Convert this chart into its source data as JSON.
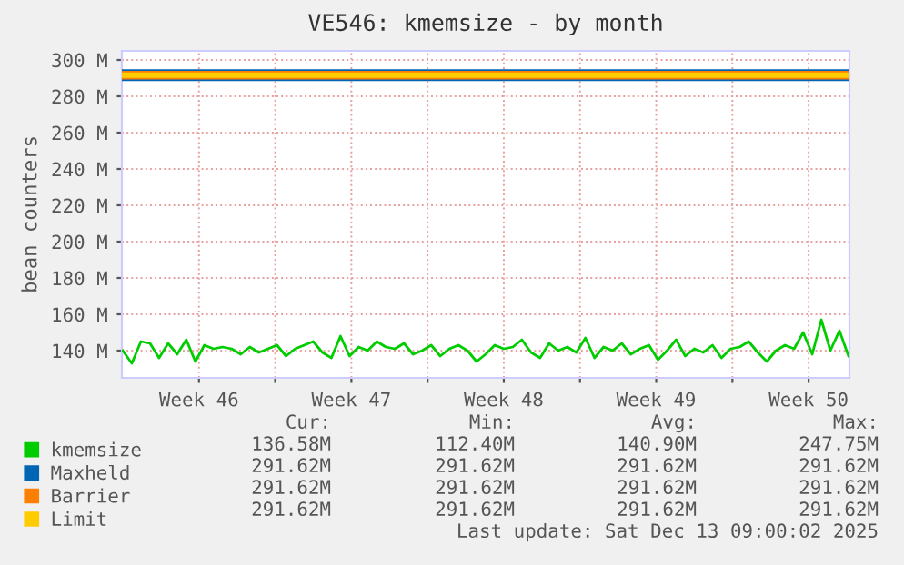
{
  "chart_data": {
    "type": "line",
    "title": "VE546: kmemsize - by month",
    "ylabel": "bean counters",
    "xlim": [
      "2025-11-09T23:00",
      "2025-12-13T09:00"
    ],
    "ylim": [
      125,
      305
    ],
    "xticks": [
      {
        "value": "2025-11-13T12:00",
        "label": "Week 46"
      },
      {
        "value": "2025-11-17",
        "label": null
      },
      {
        "value": "2025-11-20T12:00",
        "label": "Week 47"
      },
      {
        "value": "2025-11-24",
        "label": null
      },
      {
        "value": "2025-11-27T12:00",
        "label": "Week 48"
      },
      {
        "value": "2025-12-01",
        "label": null
      },
      {
        "value": "2025-12-04T12:00",
        "label": "Week 49"
      },
      {
        "value": "2025-12-08",
        "label": null
      },
      {
        "value": "2025-12-11T12:00",
        "label": "Week 50"
      }
    ],
    "yticks": [
      {
        "value": 140,
        "label": "140 M"
      },
      {
        "value": 160,
        "label": "160 M"
      },
      {
        "value": 180,
        "label": "180 M"
      },
      {
        "value": 200,
        "label": "200 M"
      },
      {
        "value": 220,
        "label": "220 M"
      },
      {
        "value": 240,
        "label": "240 M"
      },
      {
        "value": 260,
        "label": "260 M"
      },
      {
        "value": 280,
        "label": "280 M"
      },
      {
        "value": 300,
        "label": "300 M"
      }
    ],
    "grid": true,
    "legend": "bottom",
    "marker": "none",
    "line_style": "solid",
    "x": [
      "2025-11-10T00:00",
      "2025-11-10T10:00",
      "2025-11-10T20:00",
      "2025-11-11T06:00",
      "2025-11-11T16:00",
      "2025-11-12T02:00",
      "2025-11-12T12:00",
      "2025-11-12T22:00",
      "2025-11-13T08:00",
      "2025-11-13T18:00",
      "2025-11-14T04:00",
      "2025-11-14T14:00",
      "2025-11-15T00:00",
      "2025-11-15T10:00",
      "2025-11-15T20:00",
      "2025-11-16T06:00",
      "2025-11-16T16:00",
      "2025-11-17T02:00",
      "2025-11-17T12:00",
      "2025-11-17T22:00",
      "2025-11-18T08:00",
      "2025-11-18T18:00",
      "2025-11-19T04:00",
      "2025-11-19T14:00",
      "2025-11-20T00:00",
      "2025-11-20T10:00",
      "2025-11-20T20:00",
      "2025-11-21T06:00",
      "2025-11-21T16:00",
      "2025-11-22T02:00",
      "2025-11-22T12:00",
      "2025-11-22T22:00",
      "2025-11-23T08:00",
      "2025-11-23T18:00",
      "2025-11-24T04:00",
      "2025-11-24T14:00",
      "2025-11-25T00:00",
      "2025-11-25T10:00",
      "2025-11-25T20:00",
      "2025-11-26T06:00",
      "2025-11-26T16:00",
      "2025-11-27T02:00",
      "2025-11-27T12:00",
      "2025-11-27T22:00",
      "2025-11-28T08:00",
      "2025-11-28T18:00",
      "2025-11-29T04:00",
      "2025-11-29T14:00",
      "2025-11-30T00:00",
      "2025-11-30T10:00",
      "2025-11-30T20:00",
      "2025-12-01T06:00",
      "2025-12-01T16:00",
      "2025-12-02T02:00",
      "2025-12-02T12:00",
      "2025-12-02T22:00",
      "2025-12-03T08:00",
      "2025-12-03T18:00",
      "2025-12-04T04:00",
      "2025-12-04T14:00",
      "2025-12-05T00:00",
      "2025-12-05T10:00",
      "2025-12-05T20:00",
      "2025-12-06T06:00",
      "2025-12-06T16:00",
      "2025-12-07T02:00",
      "2025-12-07T12:00",
      "2025-12-07T22:00",
      "2025-12-08T08:00",
      "2025-12-08T18:00",
      "2025-12-09T04:00",
      "2025-12-09T14:00",
      "2025-12-10T00:00",
      "2025-12-10T10:00",
      "2025-12-10T20:00",
      "2025-12-11T06:00",
      "2025-12-11T16:00",
      "2025-12-12T02:00",
      "2025-12-12T12:00",
      "2025-12-12T22:00",
      "2025-12-13T08:00"
    ],
    "series": [
      {
        "name": "kmemsize",
        "color": "#00cc00",
        "values": [
          140,
          133,
          145,
          144,
          136,
          144,
          138,
          146,
          134,
          143,
          141,
          142,
          141,
          138,
          142,
          139,
          141,
          143,
          137,
          141,
          143,
          145,
          139,
          136,
          148,
          137,
          142,
          140,
          145,
          142,
          141,
          144,
          138,
          140,
          143,
          137,
          141,
          143,
          140,
          134,
          138,
          143,
          141,
          142,
          146,
          139,
          136,
          144,
          140,
          142,
          139,
          147,
          136,
          142,
          140,
          144,
          138,
          141,
          143,
          135,
          140,
          146,
          137,
          141,
          139,
          143,
          136,
          141,
          142,
          145,
          139,
          134,
          140,
          143,
          141,
          150,
          138,
          157,
          140,
          151,
          137
        ]
      },
      {
        "name": "Maxheld",
        "color": "#0066b3",
        "x": [
          "2025-11-09T23:00",
          "2025-12-13T09:00"
        ],
        "values": [
          291.62,
          291.62
        ]
      },
      {
        "name": "Barrier",
        "color": "#ff8000",
        "x": [
          "2025-11-09T23:00",
          "2025-12-13T09:00"
        ],
        "values": [
          291.62,
          291.62
        ]
      },
      {
        "name": "Limit",
        "color": "#ffcc00",
        "x": [
          "2025-11-09T23:00",
          "2025-12-13T09:00"
        ],
        "values": [
          291.62,
          291.62
        ]
      }
    ],
    "annotations": [
      "Cur:",
      "Min:",
      "Avg:",
      "Max:",
      "136.58M",
      "112.40M",
      "140.90M",
      "247.75M",
      "291.62M",
      "291.62M",
      "291.62M",
      "291.62M",
      "291.62M",
      "291.62M",
      "291.62M",
      "291.62M",
      "291.62M",
      "291.62M",
      "291.62M",
      "291.62M",
      "Last update: Sat Dec 13 09:00:02 2025"
    ]
  }
}
